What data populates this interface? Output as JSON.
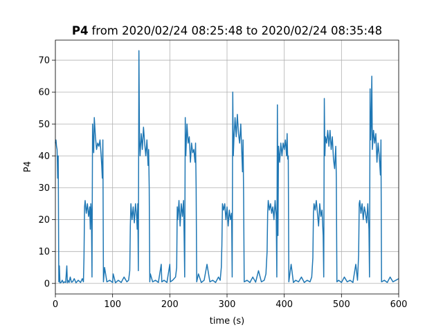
{
  "chart_data": {
    "type": "line",
    "title_parts": [
      "P4",
      "from 2020/02/24 08:25:48 to 2020/02/24 08:35:48"
    ],
    "x_label": "time (s)",
    "y_label": "P4",
    "color": "#1f77b4",
    "grid": true,
    "xlim": [
      0,
      600
    ],
    "ylim": [
      -3.3,
      76.3
    ],
    "xticks": [
      0,
      100,
      200,
      300,
      400,
      500,
      600
    ],
    "yticks": [
      0,
      10,
      20,
      30,
      40,
      50,
      60,
      70
    ],
    "x": [
      0,
      1,
      2,
      3,
      4,
      5,
      6,
      7,
      8,
      10,
      12,
      14,
      16,
      18,
      20,
      21,
      22,
      24,
      26,
      28,
      30,
      33,
      36,
      40,
      44,
      47,
      49,
      50,
      51,
      52,
      54,
      56,
      58,
      60,
      61,
      62,
      63,
      64,
      65,
      66,
      67,
      68,
      70,
      72,
      74,
      76,
      78,
      80,
      81,
      82,
      83,
      84,
      86,
      90,
      95,
      100,
      101,
      105,
      110,
      115,
      120,
      125,
      128,
      130,
      131,
      132,
      134,
      136,
      138,
      140,
      142,
      143,
      144,
      145,
      146,
      147,
      148,
      150,
      152,
      154,
      156,
      158,
      160,
      162,
      163,
      164,
      165,
      166,
      170,
      175,
      180,
      185,
      186,
      190,
      195,
      200,
      201,
      205,
      210,
      212,
      213,
      214,
      216,
      218,
      220,
      222,
      224,
      225,
      226,
      227,
      228,
      230,
      232,
      234,
      236,
      238,
      240,
      242,
      244,
      245,
      246,
      247,
      250,
      255,
      260,
      265,
      270,
      275,
      280,
      285,
      288,
      290,
      291,
      292,
      294,
      296,
      298,
      300,
      302,
      304,
      306,
      308,
      309,
      310,
      311,
      312,
      314,
      316,
      318,
      320,
      322,
      324,
      326,
      327,
      328,
      329,
      330,
      335,
      340,
      345,
      350,
      355,
      360,
      365,
      368,
      370,
      371,
      372,
      374,
      376,
      378,
      380,
      382,
      384,
      386,
      387,
      388,
      389,
      390,
      392,
      394,
      396,
      398,
      400,
      402,
      404,
      405,
      406,
      407,
      408,
      412,
      416,
      420,
      425,
      430,
      435,
      440,
      445,
      448,
      450,
      451,
      452,
      454,
      456,
      458,
      460,
      462,
      464,
      466,
      468,
      469,
      470,
      471,
      472,
      474,
      476,
      478,
      480,
      482,
      484,
      486,
      488,
      490,
      491,
      492,
      495,
      500,
      505,
      510,
      515,
      520,
      525,
      528,
      530,
      531,
      532,
      534,
      536,
      538,
      540,
      542,
      544,
      546,
      548,
      549,
      550,
      551,
      552,
      553,
      554,
      556,
      558,
      560,
      562,
      564,
      566,
      568,
      569,
      570,
      575,
      580,
      585,
      590,
      595,
      600
    ],
    "values": [
      44,
      45,
      43,
      42,
      33,
      40,
      0.5,
      5.5,
      0.2,
      0.3,
      1,
      0.2,
      0.5,
      0.3,
      5.5,
      0.2,
      1,
      0.3,
      2,
      0.4,
      0.5,
      1.5,
      0.2,
      1,
      0.3,
      1.5,
      0.5,
      8,
      24,
      26,
      22,
      25,
      21,
      24,
      17,
      25,
      22,
      2,
      50,
      44,
      41,
      52,
      46,
      42,
      44,
      43,
      45,
      40,
      37,
      33,
      45,
      0.5,
      5,
      0.5,
      1,
      0.3,
      3,
      0.2,
      1,
      0.3,
      2,
      0.5,
      1,
      4,
      18,
      25,
      20,
      24,
      19,
      25,
      21,
      17,
      25,
      4,
      73,
      45,
      40,
      47,
      42,
      49,
      44,
      40,
      45,
      37,
      42,
      30,
      0.5,
      3,
      0.5,
      1,
      0.3,
      6,
      0.5,
      1,
      0.3,
      6,
      0.5,
      1,
      2,
      5,
      24,
      20,
      26,
      18,
      25,
      21,
      26,
      15,
      2,
      52,
      40,
      50,
      44,
      46,
      38,
      44,
      41,
      42,
      38,
      44,
      30,
      0.5,
      3,
      0.3,
      1,
      6,
      0.5,
      1,
      0.3,
      2,
      1,
      5,
      12,
      25,
      23,
      25,
      20,
      24,
      18,
      23,
      20,
      22,
      2,
      60,
      40,
      45,
      52,
      46,
      53,
      47,
      44,
      50,
      40,
      35,
      45,
      27,
      0.5,
      1,
      0.3,
      2,
      0.4,
      4,
      0.5,
      1,
      3,
      10,
      22,
      26,
      23,
      25,
      22,
      24,
      20,
      26,
      21,
      2,
      56,
      15,
      43,
      38,
      44,
      40,
      44,
      42,
      45,
      40,
      47,
      39,
      40,
      0.5,
      6,
      0.3,
      1,
      0.5,
      2,
      0.3,
      1,
      0.5,
      2,
      8,
      22,
      25,
      23,
      26,
      22,
      18,
      25,
      21,
      23,
      15,
      2,
      58,
      40,
      46,
      44,
      48,
      43,
      48,
      42,
      46,
      39,
      36,
      43,
      33,
      0.5,
      1,
      0.3,
      2,
      0.5,
      1,
      0.3,
      6,
      1,
      9,
      25,
      26,
      22,
      25,
      20,
      24,
      22,
      19,
      25,
      17,
      2,
      61,
      45,
      50,
      65,
      42,
      48,
      44,
      47,
      38,
      44,
      40,
      34,
      45,
      0.5,
      1,
      0.3,
      2,
      0.5,
      1,
      1.5
    ]
  }
}
